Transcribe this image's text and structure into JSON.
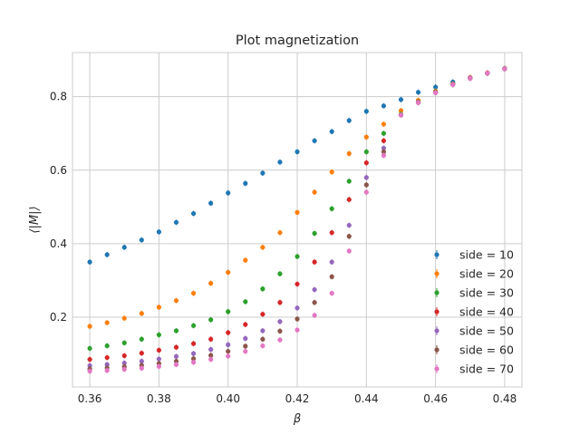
{
  "chart_data": {
    "type": "scatter",
    "title": "Plot magnetization",
    "xlabel": "β",
    "ylabel": "⟨|M|⟩",
    "xlim": [
      0.355,
      0.485
    ],
    "ylim": [
      0.01,
      0.92
    ],
    "xticks": [
      0.36,
      0.38,
      0.4,
      0.42,
      0.44,
      0.46,
      0.48
    ],
    "xtick_labels": [
      "0.36",
      "0.38",
      "0.40",
      "0.42",
      "0.44",
      "0.46",
      "0.48"
    ],
    "yticks": [
      0.2,
      0.4,
      0.6,
      0.8
    ],
    "ytick_labels": [
      "0.2",
      "0.4",
      "0.6",
      "0.8"
    ],
    "grid": true,
    "legend_position": "lower-right",
    "series": [
      {
        "name": "side = 10",
        "color": "#1f77b4",
        "x": [
          0.36,
          0.365,
          0.37,
          0.375,
          0.38,
          0.385,
          0.39,
          0.395,
          0.4,
          0.405,
          0.41,
          0.415,
          0.42,
          0.425,
          0.43,
          0.435,
          0.44,
          0.445,
          0.45,
          0.455,
          0.46,
          0.465,
          0.47,
          0.475,
          0.48
        ],
        "y": [
          0.35,
          0.37,
          0.39,
          0.41,
          0.432,
          0.458,
          0.482,
          0.51,
          0.538,
          0.564,
          0.592,
          0.622,
          0.65,
          0.68,
          0.705,
          0.735,
          0.76,
          0.775,
          0.792,
          0.812,
          0.826,
          0.84,
          0.852,
          0.864,
          0.876
        ]
      },
      {
        "name": "side = 20",
        "color": "#ff7f0e",
        "x": [
          0.36,
          0.365,
          0.37,
          0.375,
          0.38,
          0.385,
          0.39,
          0.395,
          0.4,
          0.405,
          0.41,
          0.415,
          0.42,
          0.425,
          0.43,
          0.435,
          0.44,
          0.445,
          0.45,
          0.455,
          0.46,
          0.465,
          0.47,
          0.475,
          0.48
        ],
        "y": [
          0.175,
          0.185,
          0.197,
          0.21,
          0.227,
          0.245,
          0.265,
          0.292,
          0.322,
          0.355,
          0.39,
          0.43,
          0.485,
          0.54,
          0.595,
          0.645,
          0.69,
          0.725,
          0.762,
          0.79,
          0.815,
          0.835,
          0.852,
          0.865,
          0.877
        ]
      },
      {
        "name": "side = 30",
        "color": "#2ca02c",
        "x": [
          0.36,
          0.365,
          0.37,
          0.375,
          0.38,
          0.385,
          0.39,
          0.395,
          0.4,
          0.405,
          0.41,
          0.415,
          0.42,
          0.425,
          0.43,
          0.435,
          0.44,
          0.445,
          0.45,
          0.455,
          0.46,
          0.465,
          0.47,
          0.475,
          0.48
        ],
        "y": [
          0.115,
          0.122,
          0.13,
          0.14,
          0.152,
          0.163,
          0.177,
          0.193,
          0.215,
          0.242,
          0.277,
          0.318,
          0.365,
          0.428,
          0.495,
          0.57,
          0.65,
          0.7,
          0.752,
          0.786,
          0.813,
          0.835,
          0.851,
          0.864,
          0.877
        ]
      },
      {
        "name": "side = 40",
        "color": "#d62728",
        "x": [
          0.36,
          0.365,
          0.37,
          0.375,
          0.38,
          0.385,
          0.39,
          0.395,
          0.4,
          0.405,
          0.41,
          0.415,
          0.42,
          0.425,
          0.43,
          0.435,
          0.44,
          0.445,
          0.45,
          0.455,
          0.46,
          0.465,
          0.47,
          0.475,
          0.48
        ],
        "y": [
          0.085,
          0.09,
          0.095,
          0.102,
          0.11,
          0.118,
          0.128,
          0.14,
          0.158,
          0.18,
          0.208,
          0.24,
          0.29,
          0.35,
          0.43,
          0.52,
          0.62,
          0.68,
          0.75,
          0.785,
          0.812,
          0.834,
          0.851,
          0.864,
          0.876
        ]
      },
      {
        "name": "side = 50",
        "color": "#9467bd",
        "x": [
          0.36,
          0.365,
          0.37,
          0.375,
          0.38,
          0.385,
          0.39,
          0.395,
          0.4,
          0.405,
          0.41,
          0.415,
          0.42,
          0.425,
          0.43,
          0.435,
          0.44,
          0.445,
          0.45,
          0.455,
          0.46,
          0.465,
          0.47,
          0.475,
          0.48
        ],
        "y": [
          0.068,
          0.071,
          0.075,
          0.08,
          0.086,
          0.093,
          0.101,
          0.112,
          0.125,
          0.142,
          0.163,
          0.188,
          0.225,
          0.275,
          0.35,
          0.45,
          0.58,
          0.66,
          0.75,
          0.784,
          0.811,
          0.833,
          0.85,
          0.864,
          0.876
        ]
      },
      {
        "name": "side = 60",
        "color": "#8c564b",
        "x": [
          0.36,
          0.365,
          0.37,
          0.375,
          0.38,
          0.385,
          0.39,
          0.395,
          0.4,
          0.405,
          0.41,
          0.415,
          0.42,
          0.425,
          0.43,
          0.435,
          0.44,
          0.445,
          0.45,
          0.455,
          0.46,
          0.465,
          0.47,
          0.475,
          0.48
        ],
        "y": [
          0.059,
          0.062,
          0.065,
          0.069,
          0.074,
          0.08,
          0.087,
          0.096,
          0.107,
          0.121,
          0.14,
          0.162,
          0.195,
          0.24,
          0.31,
          0.42,
          0.56,
          0.65,
          0.75,
          0.784,
          0.811,
          0.833,
          0.85,
          0.864,
          0.876
        ]
      },
      {
        "name": "side = 70",
        "color": "#e377c2",
        "x": [
          0.36,
          0.365,
          0.37,
          0.375,
          0.38,
          0.385,
          0.39,
          0.395,
          0.4,
          0.405,
          0.41,
          0.415,
          0.42,
          0.425,
          0.43,
          0.435,
          0.44,
          0.445,
          0.45,
          0.455,
          0.46,
          0.465,
          0.47,
          0.475,
          0.48
        ],
        "y": [
          0.053,
          0.055,
          0.058,
          0.061,
          0.066,
          0.071,
          0.077,
          0.085,
          0.094,
          0.107,
          0.122,
          0.138,
          0.165,
          0.205,
          0.265,
          0.38,
          0.54,
          0.64,
          0.75,
          0.784,
          0.811,
          0.833,
          0.85,
          0.864,
          0.876
        ]
      }
    ]
  }
}
